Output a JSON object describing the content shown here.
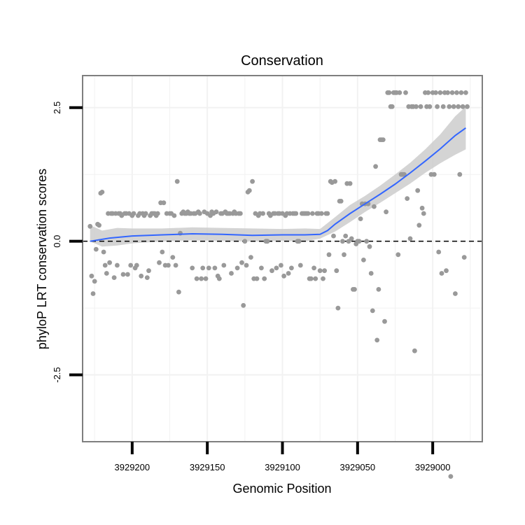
{
  "chart_data": {
    "type": "scatter",
    "title": "Conservation",
    "xlabel": "Genomic Position",
    "ylabel": "phyloP LRT conservation scores",
    "x_reversed": true,
    "xlim": [
      3929233,
      3928967
    ],
    "ylim": [
      -3.75,
      3.1
    ],
    "x_ticks": [
      {
        "value": 3929200,
        "label": "3929200"
      },
      {
        "value": 3929150,
        "label": "3929150"
      },
      {
        "value": 3929100,
        "label": "3929100"
      },
      {
        "value": 3929050,
        "label": "3929050"
      },
      {
        "value": 3929000,
        "label": "3929000"
      }
    ],
    "y_ticks": [
      {
        "value": 2.5,
        "label": "2.5"
      },
      {
        "value": 0.0,
        "label": "0.0"
      },
      {
        "value": -2.5,
        "label": "-2.5"
      }
    ],
    "grid": true,
    "reference_line": {
      "y": 0,
      "style": "dashed",
      "color": "#000000"
    },
    "colors": {
      "points": "#999999",
      "smooth": "#3366ff",
      "ribbon": "#cccccc",
      "grid": "#f2f2f2",
      "panel_border": "#7f7f7f"
    },
    "points": [
      [
        3929228,
        0.28
      ],
      [
        3929227,
        -0.65
      ],
      [
        3929226,
        -0.98
      ],
      [
        3929225,
        -0.75
      ],
      [
        3929224,
        -0.15
      ],
      [
        3929223,
        0.32
      ],
      [
        3929222,
        0.3
      ],
      [
        3929221,
        0.9
      ],
      [
        3929220,
        0.92
      ],
      [
        3929219,
        -0.2
      ],
      [
        3929218,
        -0.45
      ],
      [
        3929217,
        -0.6
      ],
      [
        3929216,
        0.52
      ],
      [
        3929215,
        -0.4
      ],
      [
        3929214,
        0.52
      ],
      [
        3929213,
        0.52
      ],
      [
        3929212,
        -0.68
      ],
      [
        3929211,
        0.52
      ],
      [
        3929210,
        -0.45
      ],
      [
        3929209,
        0.52
      ],
      [
        3929208,
        0.52
      ],
      [
        3929207,
        0.48
      ],
      [
        3929206,
        -0.62
      ],
      [
        3929205,
        0.52
      ],
      [
        3929204,
        0.52
      ],
      [
        3929203,
        -0.62
      ],
      [
        3929202,
        0.52
      ],
      [
        3929201,
        -0.45
      ],
      [
        3929200,
        0.48
      ],
      [
        3929199,
        0.52
      ],
      [
        3929198,
        -0.5
      ],
      [
        3929197,
        -0.45
      ],
      [
        3929196,
        0.48
      ],
      [
        3929195,
        0.52
      ],
      [
        3929194,
        -0.65
      ],
      [
        3929193,
        0.52
      ],
      [
        3929192,
        0.48
      ],
      [
        3929191,
        0.52
      ],
      [
        3929190,
        -0.68
      ],
      [
        3929189,
        -0.55
      ],
      [
        3929188,
        0.48
      ],
      [
        3929187,
        0.52
      ],
      [
        3929186,
        0.52
      ],
      [
        3929185,
        0.52
      ],
      [
        3929184,
        0.48
      ],
      [
        3929183,
        0.52
      ],
      [
        3929182,
        -0.4
      ],
      [
        3929181,
        0.72
      ],
      [
        3929180,
        -0.2
      ],
      [
        3929179,
        0.72
      ],
      [
        3929178,
        -0.45
      ],
      [
        3929177,
        0.52
      ],
      [
        3929176,
        -0.45
      ],
      [
        3929175,
        0.52
      ],
      [
        3929174,
        0.52
      ],
      [
        3929173,
        -0.3
      ],
      [
        3929172,
        0.48
      ],
      [
        3929171,
        -0.45
      ],
      [
        3929170,
        1.12
      ],
      [
        3929169,
        -0.95
      ],
      [
        3929168,
        0.15
      ],
      [
        3929167,
        0.52
      ],
      [
        3929166,
        0.55
      ],
      [
        3929165,
        0.52
      ],
      [
        3929164,
        0.52
      ],
      [
        3929163,
        0.55
      ],
      [
        3929162,
        0.52
      ],
      [
        3929161,
        0.52
      ],
      [
        3929160,
        -0.5
      ],
      [
        3929159,
        0.52
      ],
      [
        3929158,
        0.52
      ],
      [
        3929157,
        -0.7
      ],
      [
        3929156,
        0.55
      ],
      [
        3929155,
        0.52
      ],
      [
        3929154,
        -0.7
      ],
      [
        3929153,
        -0.5
      ],
      [
        3929152,
        0.55
      ],
      [
        3929151,
        -0.7
      ],
      [
        3929150,
        0.52
      ],
      [
        3929149,
        -0.5
      ],
      [
        3929148,
        0.48
      ],
      [
        3929147,
        0.55
      ],
      [
        3929146,
        0.52
      ],
      [
        3929145,
        -0.5
      ],
      [
        3929144,
        0.55
      ],
      [
        3929143,
        -0.65
      ],
      [
        3929142,
        -0.7
      ],
      [
        3929141,
        0.52
      ],
      [
        3929140,
        0.52
      ],
      [
        3929139,
        -0.45
      ],
      [
        3929138,
        0.55
      ],
      [
        3929137,
        0.52
      ],
      [
        3929136,
        0.52
      ],
      [
        3929135,
        0.52
      ],
      [
        3929134,
        -0.6
      ],
      [
        3929133,
        0.52
      ],
      [
        3929132,
        0.55
      ],
      [
        3929131,
        0.52
      ],
      [
        3929130,
        -0.5
      ],
      [
        3929129,
        0.52
      ],
      [
        3929128,
        0.52
      ],
      [
        3929127,
        -0.4
      ],
      [
        3929126,
        -1.2
      ],
      [
        3929125,
        0.0
      ],
      [
        3929124,
        -0.45
      ],
      [
        3929123,
        0.92
      ],
      [
        3929122,
        0.95
      ],
      [
        3929121,
        -0.3
      ],
      [
        3929120,
        1.12
      ],
      [
        3929119,
        -0.7
      ],
      [
        3929118,
        0.52
      ],
      [
        3929117,
        -0.7
      ],
      [
        3929116,
        0.48
      ],
      [
        3929115,
        0.52
      ],
      [
        3929114,
        -0.5
      ],
      [
        3929113,
        0.52
      ],
      [
        3929112,
        -0.7
      ],
      [
        3929111,
        0.0
      ],
      [
        3929110,
        0.0
      ],
      [
        3929109,
        0.52
      ],
      [
        3929108,
        0.48
      ],
      [
        3929107,
        -0.55
      ],
      [
        3929106,
        0.52
      ],
      [
        3929105,
        0.52
      ],
      [
        3929104,
        -0.5
      ],
      [
        3929103,
        0.52
      ],
      [
        3929102,
        0.52
      ],
      [
        3929101,
        -0.45
      ],
      [
        3929100,
        0.52
      ],
      [
        3929099,
        -0.65
      ],
      [
        3929098,
        0.48
      ],
      [
        3929097,
        0.52
      ],
      [
        3929096,
        -0.6
      ],
      [
        3929095,
        0.52
      ],
      [
        3929094,
        -0.5
      ],
      [
        3929093,
        0.52
      ],
      [
        3929092,
        0.52
      ],
      [
        3929091,
        0.52
      ],
      [
        3929090,
        0.0
      ],
      [
        3929089,
        0.0
      ],
      [
        3929088,
        -0.45
      ],
      [
        3929087,
        0.52
      ],
      [
        3929086,
        0.52
      ],
      [
        3929085,
        0.52
      ],
      [
        3929084,
        0.52
      ],
      [
        3929083,
        0.52
      ],
      [
        3929082,
        -0.7
      ],
      [
        3929081,
        -0.7
      ],
      [
        3929080,
        0.52
      ],
      [
        3929079,
        -0.5
      ],
      [
        3929078,
        -0.7
      ],
      [
        3929077,
        0.52
      ],
      [
        3929076,
        0.52
      ],
      [
        3929075,
        -0.55
      ],
      [
        3929074,
        0.52
      ],
      [
        3929073,
        -0.7
      ],
      [
        3929072,
        -0.55
      ],
      [
        3929071,
        0.52
      ],
      [
        3929070,
        0.52
      ],
      [
        3929069,
        -0.25
      ],
      [
        3929068,
        1.12
      ],
      [
        3929067,
        1.1
      ],
      [
        3929066,
        0.1
      ],
      [
        3929065,
        1.12
      ],
      [
        3929064,
        -0.55
      ],
      [
        3929063,
        -1.25
      ],
      [
        3929062,
        0.75
      ],
      [
        3929061,
        0.75
      ],
      [
        3929060,
        0.0
      ],
      [
        3929059,
        -0.25
      ],
      [
        3929058,
        0.1
      ],
      [
        3929057,
        1.08
      ],
      [
        3929056,
        0.0
      ],
      [
        3929055,
        1.08
      ],
      [
        3929054,
        0.05
      ],
      [
        3929053,
        -0.9
      ],
      [
        3929052,
        -0.9
      ],
      [
        3929051,
        -0.05
      ],
      [
        3929050,
        0.0
      ],
      [
        3929049,
        0.0
      ],
      [
        3929048,
        0.42
      ],
      [
        3929047,
        0.7
      ],
      [
        3929046,
        -0.35
      ],
      [
        3929045,
        0.7
      ],
      [
        3929044,
        0.0
      ],
      [
        3929043,
        0.7
      ],
      [
        3929042,
        -0.1
      ],
      [
        3929041,
        -0.6
      ],
      [
        3929040,
        -1.3
      ],
      [
        3929039,
        0.65
      ],
      [
        3929038,
        1.4
      ],
      [
        3929037,
        -1.85
      ],
      [
        3929036,
        -0.9
      ],
      [
        3929035,
        1.9
      ],
      [
        3929034,
        1.9
      ],
      [
        3929033,
        1.9
      ],
      [
        3929032,
        -1.5
      ],
      [
        3929031,
        0.55
      ],
      [
        3929030,
        2.78
      ],
      [
        3929029,
        2.78
      ],
      [
        3929028,
        2.52
      ],
      [
        3929027,
        2.52
      ],
      [
        3929026,
        2.78
      ],
      [
        3929025,
        2.78
      ],
      [
        3929024,
        2.78
      ],
      [
        3929023,
        -0.25
      ],
      [
        3929022,
        2.78
      ],
      [
        3929021,
        1.25
      ],
      [
        3929020,
        1.25
      ],
      [
        3929019,
        1.25
      ],
      [
        3929018,
        2.78
      ],
      [
        3929017,
        0.8
      ],
      [
        3929016,
        2.52
      ],
      [
        3929015,
        0.05
      ],
      [
        3929014,
        2.52
      ],
      [
        3929013,
        2.52
      ],
      [
        3929012,
        -2.05
      ],
      [
        3929011,
        2.52
      ],
      [
        3929010,
        0.95
      ],
      [
        3929009,
        0.3
      ],
      [
        3929008,
        2.52
      ],
      [
        3929007,
        0.62
      ],
      [
        3929006,
        0.52
      ],
      [
        3929005,
        2.78
      ],
      [
        3929004,
        2.52
      ],
      [
        3929003,
        2.78
      ],
      [
        3929002,
        2.52
      ],
      [
        3929001,
        1.25
      ],
      [
        3929000,
        2.78
      ],
      [
        3928999,
        1.25
      ],
      [
        3928998,
        2.78
      ],
      [
        3928997,
        2.52
      ],
      [
        3928996,
        -0.2
      ],
      [
        3928995,
        2.78
      ],
      [
        3928994,
        -0.6
      ],
      [
        3928993,
        2.52
      ],
      [
        3928992,
        2.78
      ],
      [
        3928991,
        -0.55
      ],
      [
        3928990,
        2.78
      ],
      [
        3928989,
        2.52
      ],
      [
        3928988,
        -4.4
      ],
      [
        3928987,
        2.78
      ],
      [
        3928986,
        2.52
      ],
      [
        3928985,
        -0.98
      ],
      [
        3928984,
        2.78
      ],
      [
        3928983,
        2.52
      ],
      [
        3928982,
        1.25
      ],
      [
        3928981,
        2.78
      ],
      [
        3928980,
        2.52
      ],
      [
        3928979,
        -0.3
      ],
      [
        3928978,
        2.78
      ],
      [
        3928977,
        2.52
      ]
    ],
    "smooth_line": [
      [
        3929228,
        0.0
      ],
      [
        3929215,
        0.06
      ],
      [
        3929200,
        0.1
      ],
      [
        3929180,
        0.12
      ],
      [
        3929160,
        0.14
      ],
      [
        3929140,
        0.13
      ],
      [
        3929120,
        0.11
      ],
      [
        3929100,
        0.12
      ],
      [
        3929085,
        0.12
      ],
      [
        3929075,
        0.13
      ],
      [
        3929070,
        0.2
      ],
      [
        3929065,
        0.32
      ],
      [
        3929055,
        0.52
      ],
      [
        3929045,
        0.7
      ],
      [
        3929035,
        0.88
      ],
      [
        3929025,
        1.07
      ],
      [
        3929015,
        1.28
      ],
      [
        3929005,
        1.5
      ],
      [
        3928995,
        1.73
      ],
      [
        3928985,
        1.98
      ],
      [
        3928978,
        2.12
      ]
    ],
    "confidence_band": [
      [
        3929228,
        0.0,
        0.3
      ],
      [
        3929220,
        -0.1,
        0.2
      ],
      [
        3929210,
        -0.08,
        0.25
      ],
      [
        3929200,
        -0.04,
        0.24
      ],
      [
        3929180,
        0.0,
        0.24
      ],
      [
        3929160,
        0.02,
        0.26
      ],
      [
        3929140,
        0.01,
        0.25
      ],
      [
        3929120,
        0.0,
        0.24
      ],
      [
        3929100,
        0.01,
        0.23
      ],
      [
        3929085,
        0.0,
        0.24
      ],
      [
        3929075,
        0.05,
        0.23
      ],
      [
        3929065,
        0.18,
        0.45
      ],
      [
        3929055,
        0.36,
        0.68
      ],
      [
        3929045,
        0.55,
        0.85
      ],
      [
        3929035,
        0.72,
        1.04
      ],
      [
        3929025,
        0.9,
        1.25
      ],
      [
        3929015,
        1.08,
        1.47
      ],
      [
        3929005,
        1.28,
        1.72
      ],
      [
        3928995,
        1.46,
        2.0
      ],
      [
        3928985,
        1.62,
        2.34
      ],
      [
        3928978,
        1.72,
        2.52
      ]
    ]
  }
}
